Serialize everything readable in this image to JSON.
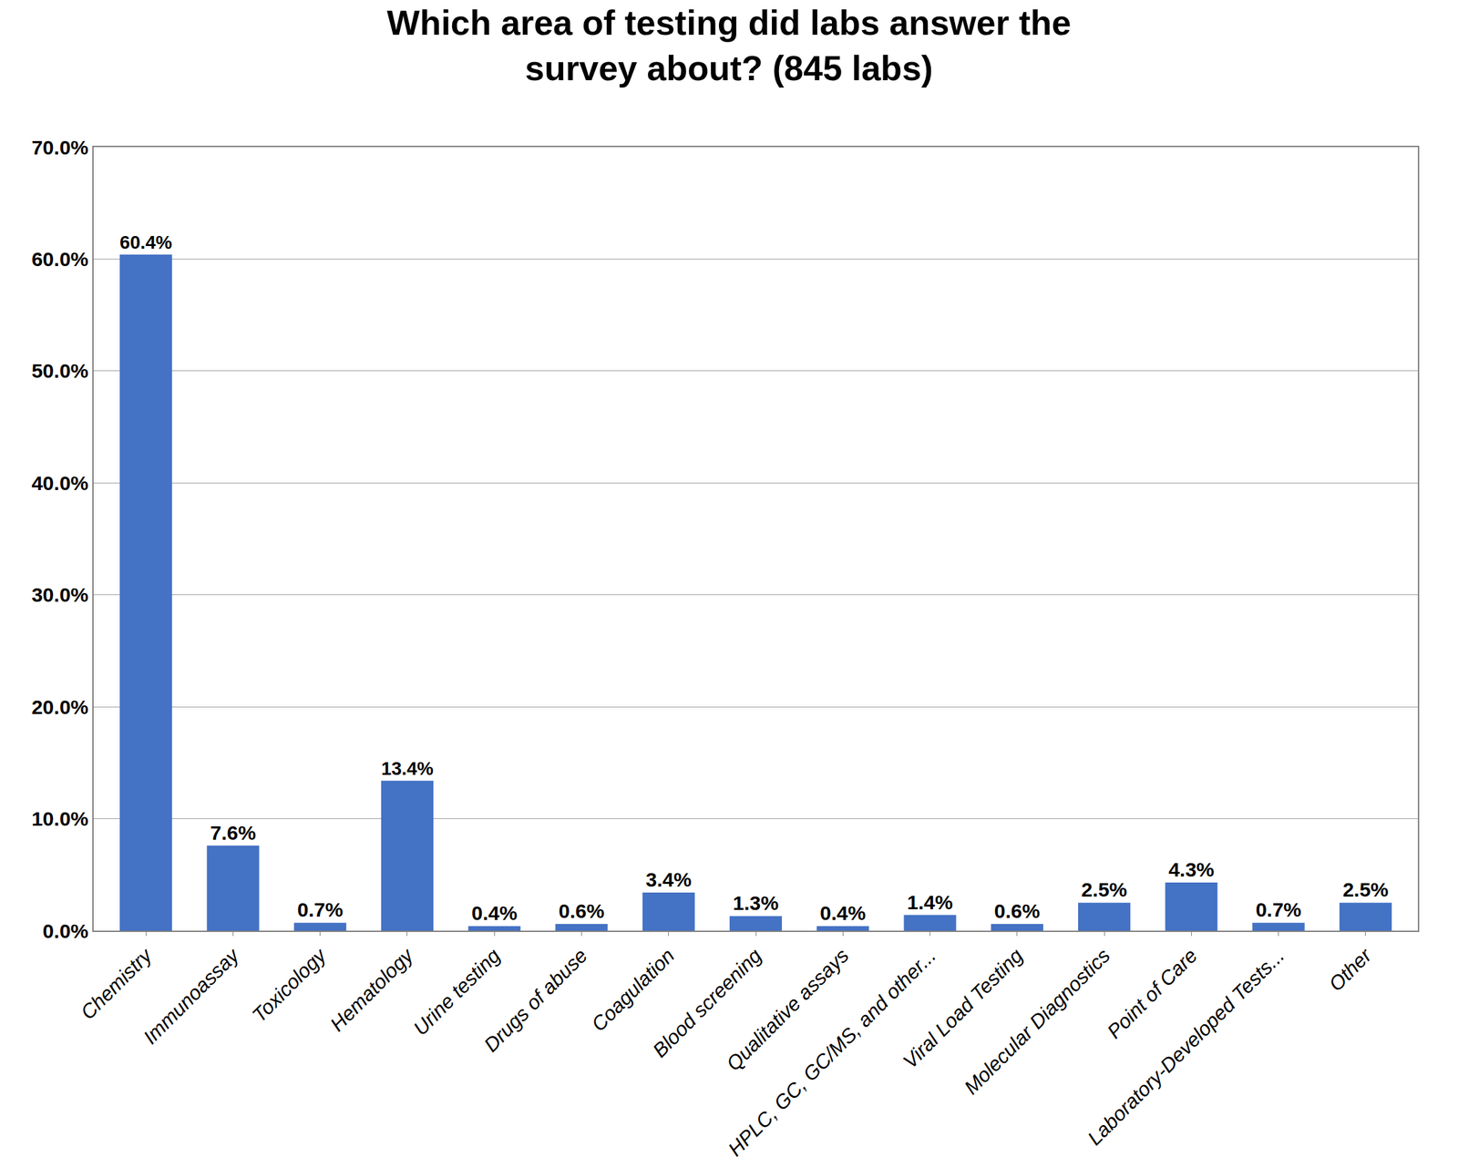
{
  "chart_data": {
    "type": "bar",
    "title": "Which area of testing did labs answer the\nsurvey about? (845 labs)",
    "categories": [
      "Chemistry",
      "Immunoassay",
      "Toxicology",
      "Hematology",
      "Urine testing",
      "Drugs of abuse",
      "Coagulation",
      "Blood screening",
      "Qualitative assays",
      "HPLC, GC, GC/MS, and other...",
      "Viral Load Testing",
      "Molecular Diagnostics",
      "Point of Care",
      "Laboratory-Developed Tests...",
      "Other"
    ],
    "values": [
      60.4,
      7.6,
      0.7,
      13.4,
      0.4,
      0.6,
      3.4,
      1.3,
      0.4,
      1.4,
      0.6,
      2.5,
      4.3,
      0.7,
      2.5
    ],
    "value_labels": [
      "60.4%",
      "7.6%",
      "0.7%",
      "13.4%",
      "0.4%",
      "0.6%",
      "3.4%",
      "1.3%",
      "0.4%",
      "1.4%",
      "0.6%",
      "2.5%",
      "4.3%",
      "0.7%",
      "2.5%"
    ],
    "data_labels": true,
    "color": "#4472C4",
    "ylim": [
      0,
      70
    ],
    "yticks": [
      {
        "value": 0,
        "label": "0.0%"
      },
      {
        "value": 10,
        "label": "10.0%"
      },
      {
        "value": 20,
        "label": "20.0%"
      },
      {
        "value": 30,
        "label": "30.0%"
      },
      {
        "value": 40,
        "label": "40.0%"
      },
      {
        "value": 50,
        "label": "50.0%"
      },
      {
        "value": 60,
        "label": "60.0%"
      },
      {
        "value": 70,
        "label": "70.0%"
      }
    ],
    "grid": true
  }
}
